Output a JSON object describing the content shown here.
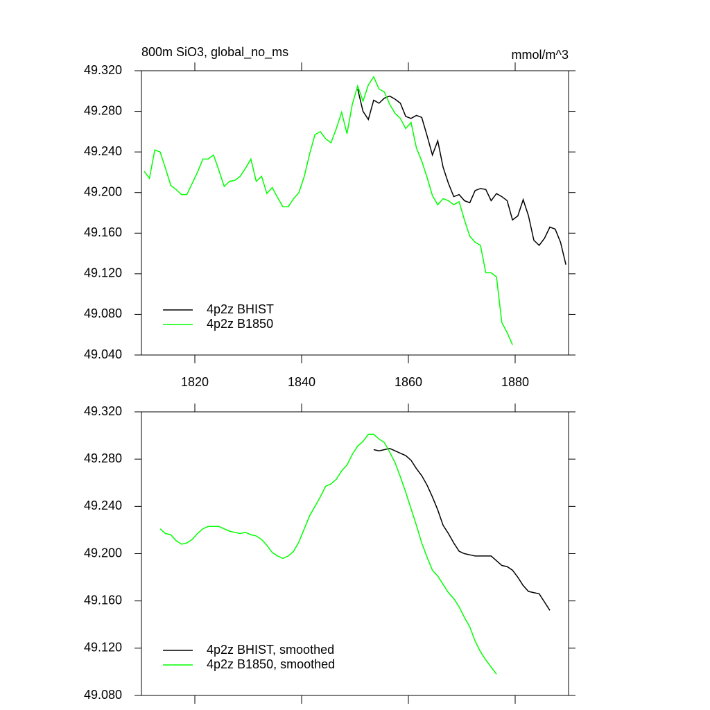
{
  "chart_data": [
    {
      "type": "line",
      "title": "800m SiO3, global_no_ms",
      "units_label": "mmol/m^3",
      "xlim": [
        1810,
        1890
      ],
      "xticks": [
        1820,
        1840,
        1860,
        1880
      ],
      "show_xtick_labels": true,
      "ylim": [
        49.04,
        49.32
      ],
      "yticks": [
        {
          "value": 49.04,
          "label": "49.040"
        },
        {
          "value": 49.08,
          "label": "49.080"
        },
        {
          "value": 49.12,
          "label": "49.120"
        },
        {
          "value": 49.16,
          "label": "49.160"
        },
        {
          "value": 49.2,
          "label": "49.200"
        },
        {
          "value": 49.24,
          "label": "49.240"
        },
        {
          "value": 49.28,
          "label": "49.280"
        },
        {
          "value": 49.32,
          "label": "49.320"
        }
      ],
      "legend": "lower left",
      "series": [
        {
          "name": "4p2z BHIST",
          "color": "#000000",
          "x": [
            1850.5,
            1851.5,
            1852.5,
            1853.5,
            1854.5,
            1855.5,
            1856.5,
            1857.5,
            1858.5,
            1859.5,
            1860.5,
            1861.5,
            1862.5,
            1863.5,
            1864.5,
            1865.5,
            1866.5,
            1867.5,
            1868.5,
            1869.5,
            1870.5,
            1871.5,
            1872.5,
            1873.5,
            1874.5,
            1875.5,
            1876.5,
            1877.5,
            1878.5,
            1879.5,
            1880.5,
            1881.5,
            1882.5,
            1883.5,
            1884.5,
            1885.5,
            1886.5,
            1887.5,
            1888.5,
            1889.5
          ],
          "values": [
            49.302,
            49.28,
            49.272,
            49.291,
            49.288,
            49.293,
            49.295,
            49.292,
            49.288,
            49.275,
            49.273,
            49.276,
            49.274,
            49.256,
            49.237,
            49.251,
            49.225,
            49.209,
            49.196,
            49.198,
            49.192,
            49.19,
            49.202,
            49.204,
            49.203,
            49.192,
            49.199,
            49.196,
            49.192,
            49.173,
            49.177,
            49.193,
            49.177,
            49.153,
            49.148,
            49.155,
            49.166,
            49.164,
            49.151,
            49.129
          ]
        },
        {
          "name": "4p2z B1850",
          "color": "#00ff00",
          "x": [
            1810.5,
            1811.5,
            1812.5,
            1813.5,
            1814.5,
            1815.5,
            1816.5,
            1817.5,
            1818.5,
            1819.5,
            1820.5,
            1821.5,
            1822.5,
            1823.5,
            1824.5,
            1825.5,
            1826.5,
            1827.5,
            1828.5,
            1829.5,
            1830.5,
            1831.5,
            1832.5,
            1833.5,
            1834.5,
            1835.5,
            1836.5,
            1837.5,
            1838.5,
            1839.5,
            1840.5,
            1841.5,
            1842.5,
            1843.5,
            1844.5,
            1845.5,
            1846.5,
            1847.5,
            1848.5,
            1849.5,
            1850.5,
            1851.5,
            1852.5,
            1853.5,
            1854.5,
            1855.5,
            1856.5,
            1857.5,
            1858.5,
            1859.5,
            1860.5,
            1861.5,
            1862.5,
            1863.5,
            1864.5,
            1865.5,
            1866.5,
            1867.5,
            1868.5,
            1869.5,
            1870.5,
            1871.5,
            1872.5,
            1873.5,
            1874.5,
            1875.5,
            1876.5,
            1877.5,
            1878.5,
            1879.5
          ],
          "values": [
            49.221,
            49.214,
            49.242,
            49.24,
            49.224,
            49.207,
            49.203,
            49.198,
            49.198,
            49.209,
            49.22,
            49.233,
            49.233,
            49.237,
            49.222,
            49.206,
            49.211,
            49.212,
            49.216,
            49.224,
            49.233,
            49.211,
            49.216,
            49.199,
            49.205,
            49.195,
            49.186,
            49.186,
            49.194,
            49.2,
            49.216,
            49.238,
            49.257,
            49.26,
            49.253,
            49.249,
            49.263,
            49.279,
            49.258,
            49.287,
            49.305,
            49.29,
            49.306,
            49.314,
            49.302,
            49.299,
            49.287,
            49.278,
            49.273,
            49.263,
            49.269,
            49.244,
            49.231,
            49.215,
            49.197,
            49.188,
            49.194,
            49.192,
            49.188,
            49.191,
            49.173,
            49.157,
            49.151,
            49.148,
            49.121,
            49.121,
            49.117,
            49.072,
            49.062,
            49.05
          ]
        }
      ]
    },
    {
      "type": "line",
      "xlim": [
        1810,
        1890
      ],
      "xticks": [
        1820,
        1840,
        1860,
        1880
      ],
      "show_xtick_labels": false,
      "ylim": [
        49.08,
        49.32
      ],
      "yticks": [
        {
          "value": 49.08,
          "label": "49.080"
        },
        {
          "value": 49.12,
          "label": "49.120"
        },
        {
          "value": 49.16,
          "label": "49.160"
        },
        {
          "value": 49.2,
          "label": "49.200"
        },
        {
          "value": 49.24,
          "label": "49.240"
        },
        {
          "value": 49.28,
          "label": "49.280"
        },
        {
          "value": 49.32,
          "label": "49.320"
        }
      ],
      "legend": "lower left",
      "series": [
        {
          "name": "4p2z BHIST, smoothed",
          "color": "#000000",
          "x": [
            1853.5,
            1854.5,
            1855.5,
            1856.5,
            1857.5,
            1858.5,
            1859.5,
            1860.5,
            1861.5,
            1862.5,
            1863.5,
            1864.5,
            1865.5,
            1866.5,
            1867.5,
            1868.5,
            1869.5,
            1870.5,
            1871.5,
            1872.5,
            1873.5,
            1874.5,
            1875.5,
            1876.5,
            1877.5,
            1878.5,
            1879.5,
            1880.5,
            1881.5,
            1882.5,
            1883.5,
            1884.5,
            1885.5,
            1886.5
          ],
          "values": [
            49.288,
            49.287,
            49.288,
            49.289,
            49.287,
            49.285,
            49.283,
            49.279,
            49.272,
            49.266,
            49.258,
            49.248,
            49.237,
            49.224,
            49.217,
            49.209,
            49.202,
            49.2,
            49.199,
            49.198,
            49.198,
            49.198,
            49.198,
            49.194,
            49.19,
            49.189,
            49.186,
            49.18,
            49.173,
            49.168,
            49.167,
            49.166,
            49.159,
            49.152
          ]
        },
        {
          "name": "4p2z B1850, smoothed",
          "color": "#00ff00",
          "x": [
            1813.5,
            1814.5,
            1815.5,
            1816.5,
            1817.5,
            1818.5,
            1819.5,
            1820.5,
            1821.5,
            1822.5,
            1823.5,
            1824.5,
            1825.5,
            1826.5,
            1827.5,
            1828.5,
            1829.5,
            1830.5,
            1831.5,
            1832.5,
            1833.5,
            1834.5,
            1835.5,
            1836.5,
            1837.5,
            1838.5,
            1839.5,
            1840.5,
            1841.5,
            1842.5,
            1843.5,
            1844.5,
            1845.5,
            1846.5,
            1847.5,
            1848.5,
            1849.5,
            1850.5,
            1851.5,
            1852.5,
            1853.5,
            1854.5,
            1855.5,
            1856.5,
            1857.5,
            1858.5,
            1859.5,
            1860.5,
            1861.5,
            1862.5,
            1863.5,
            1864.5,
            1865.5,
            1866.5,
            1867.5,
            1868.5,
            1869.5,
            1870.5,
            1871.5,
            1872.5,
            1873.5,
            1874.5,
            1875.5,
            1876.5
          ],
          "values": [
            49.221,
            49.217,
            49.216,
            49.211,
            49.208,
            49.209,
            49.212,
            49.217,
            49.221,
            49.223,
            49.223,
            49.223,
            49.221,
            49.219,
            49.218,
            49.217,
            49.218,
            49.216,
            49.215,
            49.212,
            49.207,
            49.201,
            49.198,
            49.196,
            49.198,
            49.202,
            49.21,
            49.221,
            49.232,
            49.24,
            49.248,
            49.257,
            49.259,
            49.263,
            49.27,
            49.275,
            49.284,
            49.291,
            49.295,
            49.301,
            49.301,
            49.297,
            49.294,
            49.286,
            49.277,
            49.265,
            49.252,
            49.238,
            49.224,
            49.209,
            49.197,
            49.186,
            49.181,
            49.174,
            49.167,
            49.162,
            49.155,
            49.146,
            49.138,
            49.126,
            49.117,
            49.11,
            49.104,
            49.098
          ]
        }
      ]
    }
  ]
}
